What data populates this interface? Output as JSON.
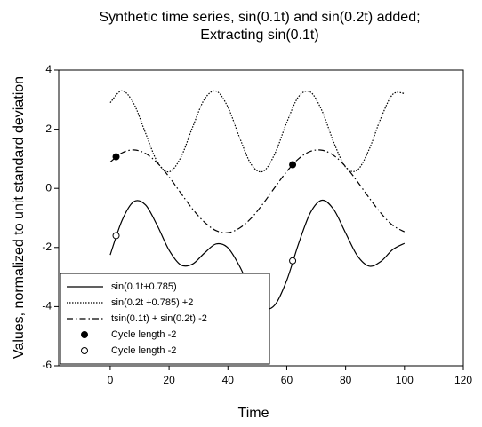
{
  "chart_data": {
    "type": "line",
    "title": [
      "Synthetic time series, sin(0.1t) and sin(0.2t) added;",
      "Extracting sin(0.1t)"
    ],
    "x_label": "Time",
    "y_label": "Values, normalized to unit standard deviation",
    "x": [
      0,
      4,
      8,
      12,
      16,
      20,
      24,
      28,
      32,
      36,
      40,
      44,
      48,
      52,
      56,
      60,
      64,
      68,
      72,
      76,
      80,
      84,
      88,
      92,
      96,
      100
    ],
    "series": [
      {
        "name": "sin(0.1t+0.785)",
        "color": "#000000",
        "style": "solid",
        "values": [
          -2.25,
          -1.09,
          -0.45,
          -0.56,
          -1.26,
          -2.09,
          -2.59,
          -2.56,
          -2.19,
          -1.88,
          -2.01,
          -2.64,
          -3.48,
          -4.05,
          -3.94,
          -3.11,
          -1.88,
          -0.83,
          -0.4,
          -0.72,
          -1.51,
          -2.28,
          -2.63,
          -2.47,
          -2.07,
          -1.86
        ]
      },
      {
        "name": "sin(0.2t +0.785) +2",
        "color": "#000000",
        "style": "dotted",
        "values": [
          2.9,
          3.3,
          2.87,
          1.87,
          0.9,
          0.56,
          1.05,
          2.07,
          3.01,
          3.29,
          2.75,
          1.71,
          0.8,
          0.58,
          1.18,
          2.23,
          3.1,
          3.26,
          2.62,
          1.55,
          0.72,
          0.62,
          1.32,
          2.38,
          3.18,
          3.21
        ]
      },
      {
        "name": "tsin(0.1t) + sin(0.2t) -2",
        "color": "#000000",
        "style": "dashdot",
        "values": [
          0.89,
          1.2,
          1.3,
          1.18,
          0.86,
          0.39,
          -0.16,
          -0.7,
          -1.14,
          -1.43,
          -1.5,
          -1.34,
          -1.0,
          -0.51,
          0.04,
          0.57,
          1.0,
          1.25,
          1.29,
          1.11,
          0.74,
          0.23,
          -0.32,
          -0.84,
          -1.25,
          -1.47
        ]
      }
    ],
    "points": [
      {
        "name": "Cycle length -2",
        "color": "#000000",
        "fill": "#000000",
        "x": [
          2,
          62
        ],
        "values": [
          1.07,
          0.8
        ]
      },
      {
        "name": "Cycle length -2",
        "color": "#000000",
        "fill": "#ffffff",
        "x": [
          2,
          62
        ],
        "values": [
          -1.6,
          -2.45
        ]
      }
    ],
    "xlim": [
      -17.5,
      120
    ],
    "xticks": [
      0,
      20,
      40,
      60,
      80,
      100,
      120
    ],
    "ylim": [
      -6,
      4
    ],
    "yticks": [
      -6,
      -4,
      -2,
      0,
      2,
      4
    ],
    "grid": false,
    "legend": "lower left"
  }
}
